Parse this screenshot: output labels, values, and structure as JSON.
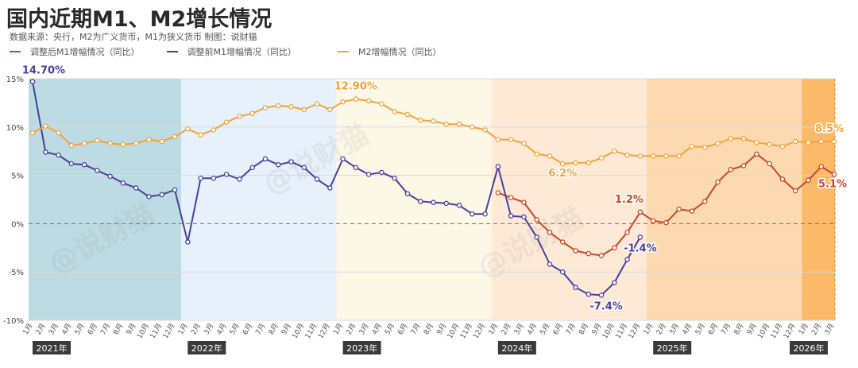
{
  "title": "国内近期M1、M2增长情况",
  "subtitle": "数据来源：央行，M2为广义货币，M1为狭义货币    制图：说财猫",
  "watermark": "@说财猫",
  "chart_data": {
    "type": "line",
    "ylim": [
      -10,
      15
    ],
    "y_ticks": [
      "15%",
      "10%",
      "5%",
      "0%",
      "-5%",
      "-10%"
    ],
    "y_tick_values": [
      15,
      10,
      5,
      0,
      -5,
      -10
    ],
    "grid": true,
    "legend_position": "top-left",
    "years": [
      "2021年",
      "2022年",
      "2023年",
      "2024年",
      "2025年",
      "2026年"
    ],
    "year_start_index": [
      0,
      12,
      24,
      36,
      48,
      60
    ],
    "x": [
      "1月",
      "2月",
      "3月",
      "4月",
      "5月",
      "6月",
      "7月",
      "8月",
      "9月",
      "10月",
      "11月",
      "12月",
      "1月",
      "2月",
      "3月",
      "4月",
      "5月",
      "6月",
      "7月",
      "8月",
      "9月",
      "10月",
      "11月",
      "12月",
      "1月",
      "2月",
      "3月",
      "4月",
      "5月",
      "6月",
      "7月",
      "8月",
      "9月",
      "10月",
      "11月",
      "12月",
      "1月",
      "2月",
      "3月",
      "4月",
      "5月",
      "6月",
      "7月",
      "8月",
      "9月",
      "10月",
      "11月",
      "12月",
      "1月",
      "2月",
      "3月",
      "4月",
      "5月",
      "6月",
      "7月",
      "8月",
      "9月",
      "10月",
      "11月",
      "12月",
      "1月",
      "2月",
      "3月"
    ],
    "series": [
      {
        "name": "调整后M1增幅情况（同比）",
        "color": "#c8472a",
        "values": [
          null,
          null,
          null,
          null,
          null,
          null,
          null,
          null,
          null,
          null,
          null,
          null,
          null,
          null,
          null,
          null,
          null,
          null,
          null,
          null,
          null,
          null,
          null,
          null,
          null,
          null,
          null,
          null,
          null,
          null,
          null,
          null,
          null,
          null,
          null,
          null,
          3.2,
          2.7,
          2.2,
          0.4,
          -0.9,
          -1.9,
          -2.8,
          -3.1,
          -3.3,
          -2.5,
          -0.9,
          1.2,
          0.3,
          0.1,
          1.5,
          1.3,
          2.3,
          4.3,
          5.6,
          6.0,
          7.2,
          6.2,
          4.6,
          3.4,
          4.5,
          5.9,
          5.1
        ]
      },
      {
        "name": "调整前M1增幅情况（同比）",
        "color": "#4a3f9c",
        "values": [
          14.7,
          7.4,
          7.1,
          6.2,
          6.1,
          5.5,
          4.9,
          4.2,
          3.7,
          2.8,
          3.0,
          3.5,
          -1.9,
          4.7,
          4.7,
          5.1,
          4.6,
          5.8,
          6.7,
          6.1,
          6.4,
          5.8,
          4.6,
          3.7,
          6.7,
          5.8,
          5.1,
          5.3,
          4.7,
          3.1,
          2.3,
          2.2,
          2.1,
          1.9,
          1.0,
          1.0,
          5.9,
          0.8,
          0.7,
          -1.4,
          -4.2,
          -5.0,
          -6.6,
          -7.3,
          -7.4,
          -6.1,
          -3.7,
          -1.4,
          null,
          null,
          null,
          null,
          null,
          null,
          null,
          null,
          null,
          null,
          null,
          null,
          null,
          null,
          null
        ]
      },
      {
        "name": "M2增幅情况（同比）",
        "color": "#f0a33c",
        "values": [
          9.4,
          10.1,
          9.4,
          8.1,
          8.3,
          8.6,
          8.3,
          8.2,
          8.3,
          8.7,
          8.5,
          9.0,
          9.8,
          9.2,
          9.7,
          10.5,
          11.1,
          11.4,
          12.0,
          12.2,
          12.1,
          11.8,
          12.4,
          11.8,
          12.6,
          12.9,
          12.7,
          12.4,
          11.6,
          11.3,
          10.7,
          10.6,
          10.3,
          10.3,
          10.0,
          9.7,
          8.7,
          8.7,
          8.3,
          7.2,
          7.0,
          6.2,
          6.3,
          6.3,
          6.8,
          7.5,
          7.1,
          7.0,
          7.0,
          7.0,
          7.0,
          8.0,
          7.9,
          8.3,
          8.8,
          8.8,
          8.4,
          8.2,
          8.0,
          8.5,
          8.4,
          8.5,
          8.5
        ]
      }
    ],
    "annotations": [
      {
        "text": "14.70%",
        "series": 1,
        "index": 0
      },
      {
        "text": "12.90%",
        "series": 2,
        "index": 25
      },
      {
        "text": "6.2%",
        "series": 2,
        "index": 41
      },
      {
        "text": "1.2%",
        "series": 0,
        "index": 47
      },
      {
        "text": "-1.4%",
        "series": 1,
        "index": 47
      },
      {
        "text": "-7.4%",
        "series": 1,
        "index": 44
      },
      {
        "text": "8.5%",
        "series": 2,
        "index": 62
      },
      {
        "text": "5.1%",
        "series": 0,
        "index": 62
      }
    ]
  }
}
